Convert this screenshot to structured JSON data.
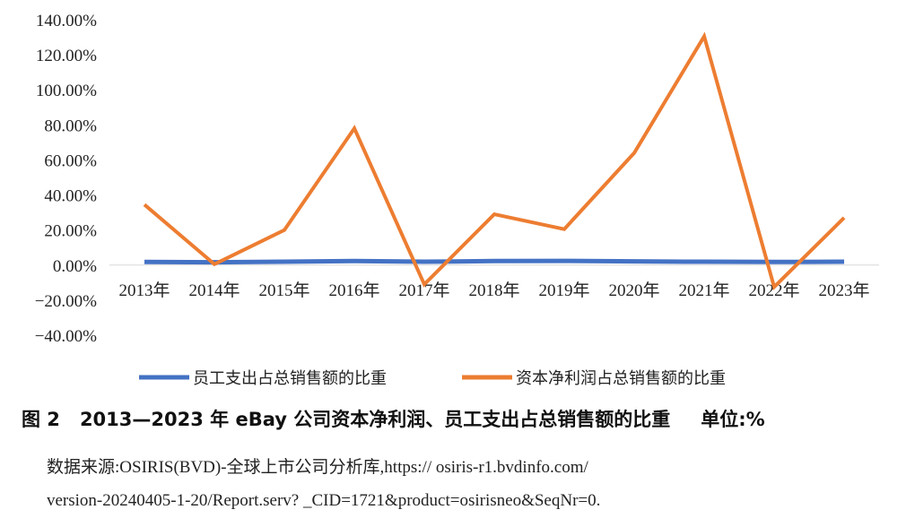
{
  "chart_data": {
    "type": "line",
    "categories": [
      "2013年",
      "2014年",
      "2015年",
      "2016年",
      "2017年",
      "2018年",
      "2019年",
      "2020年",
      "2021年",
      "2022年",
      "2023年"
    ],
    "series": [
      {
        "name": "员工支出占总销售额的比重",
        "color": "#4472C4",
        "values": [
          1.8,
          1.6,
          1.9,
          2.3,
          1.9,
          2.3,
          2.4,
          2.1,
          1.9,
          1.8,
          1.9
        ]
      },
      {
        "name": "资本净利润占总销售额的比重",
        "color": "#ED7D31",
        "values": [
          34.5,
          0.5,
          20.0,
          78.0,
          -11.0,
          29.0,
          20.5,
          64.0,
          130.5,
          -12.5,
          27.0
        ]
      }
    ],
    "y_ticks": [
      "140.00%",
      "120.00%",
      "100.00%",
      "80.00%",
      "60.00%",
      "40.00%",
      "20.00%",
      "0.00%",
      "−20.00%",
      "−40.00%"
    ],
    "ylim": [
      -40,
      140
    ],
    "legend_position": "bottom",
    "grid": false
  },
  "caption": {
    "figure_no": "图 2",
    "title": "2013—2023 年 eBay 公司资本净利润、员工支出占总销售额的比重",
    "unit": "单位:%"
  },
  "source": {
    "line1": "数据来源:OSIRIS(BVD)-全球上市公司分析库,https:// osiris-r1.bvdinfo.com/",
    "line2": "version-20240405-1-20/Report.serv? _CID=1721&product=osirisneo&SeqNr=0."
  }
}
